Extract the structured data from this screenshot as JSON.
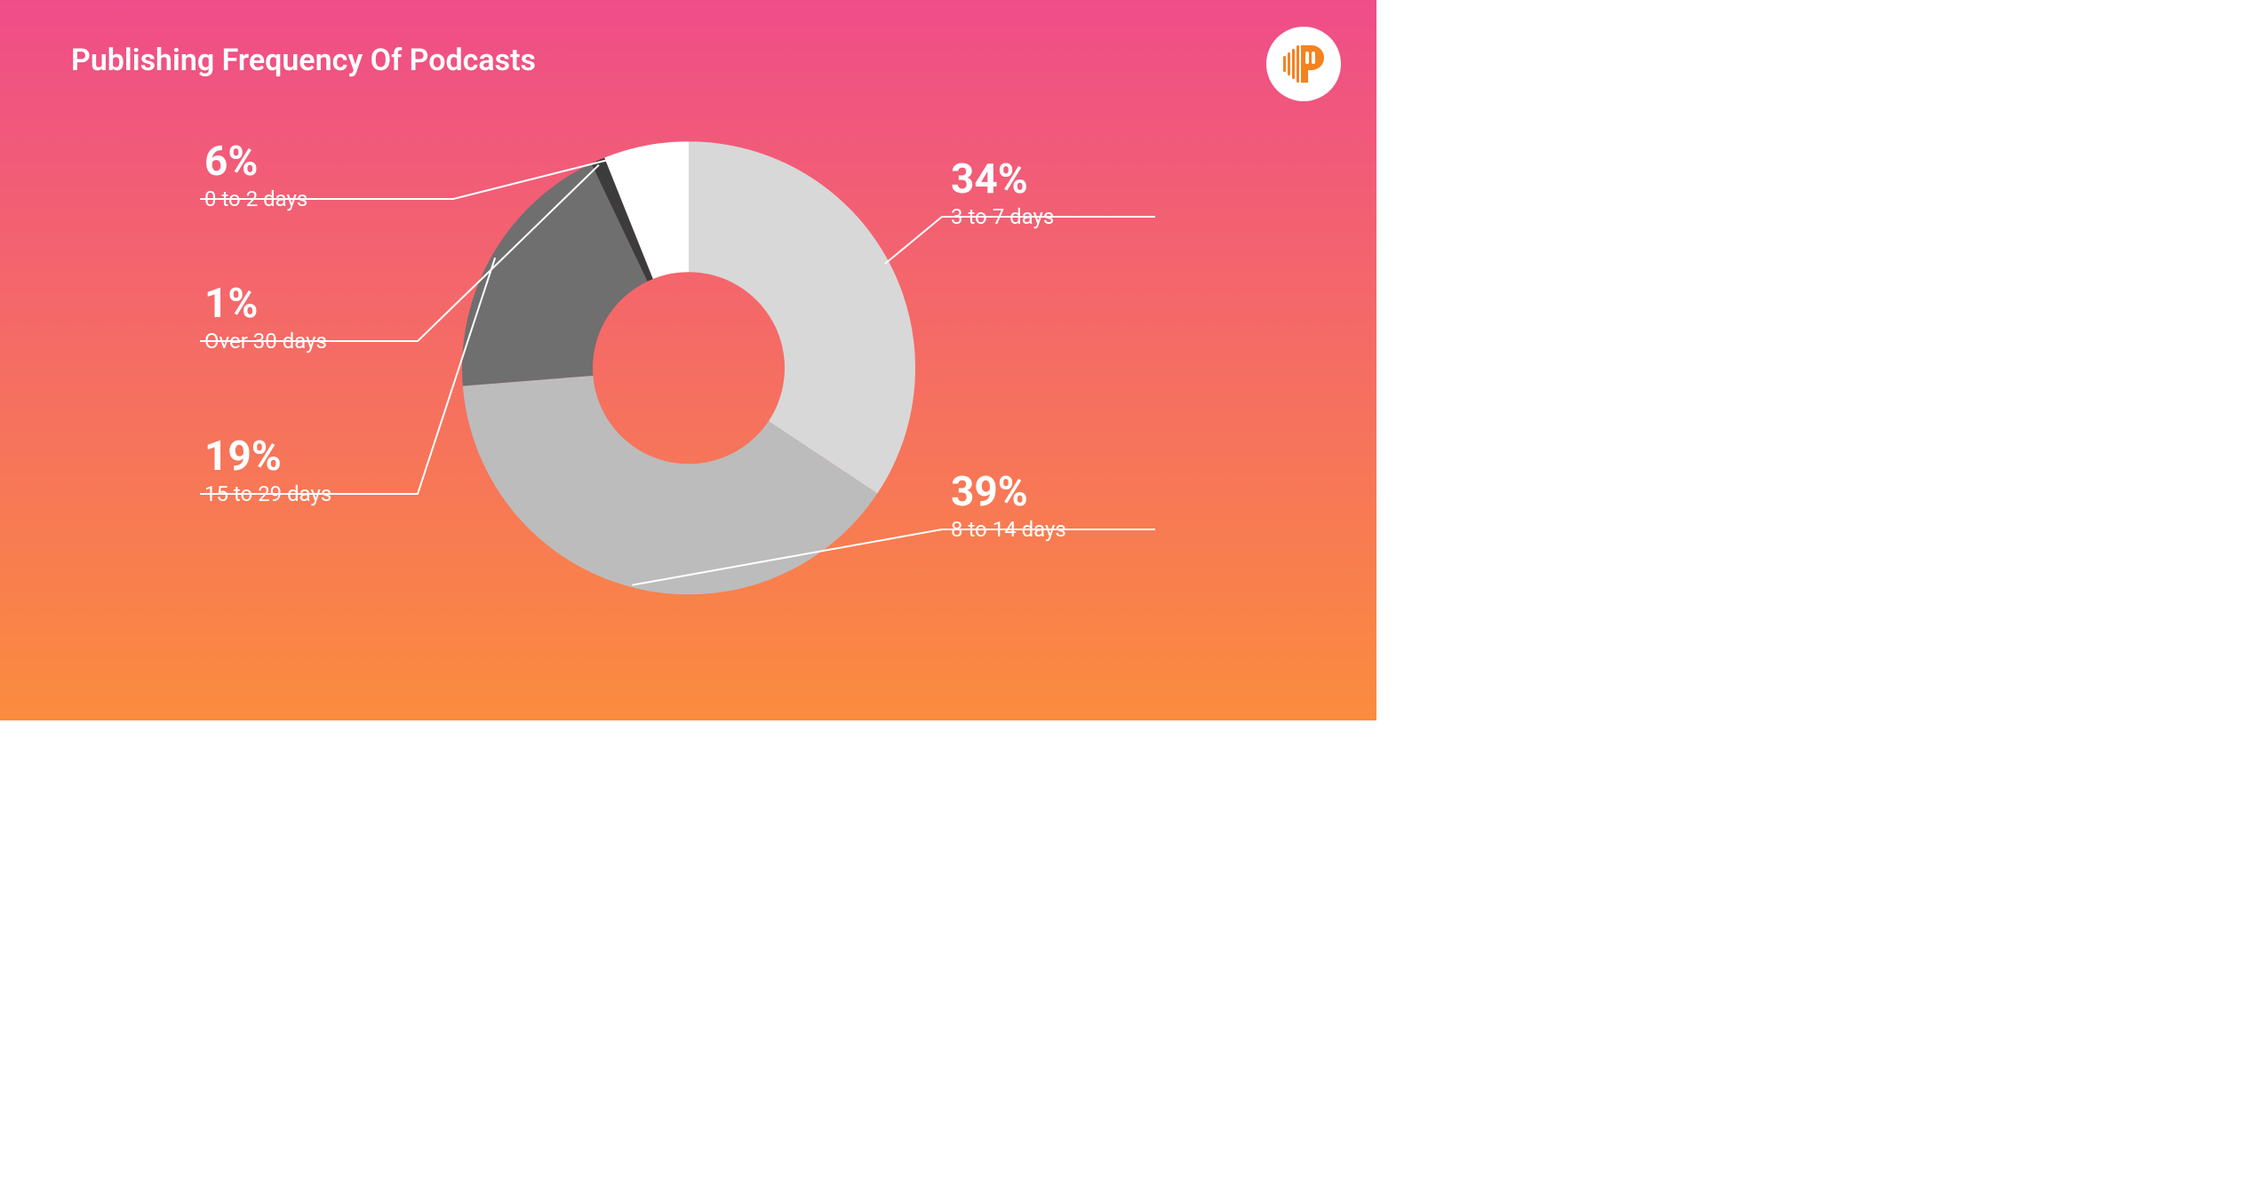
{
  "title": "Publishing Frequency Of Podcasts",
  "title_fontsize": 34,
  "title_color": "#ffffff",
  "background_gradient": {
    "top": "#ef4d89",
    "bottom": "#fb8c3e"
  },
  "logo": {
    "bg": "#ffffff",
    "accent": "#f58220"
  },
  "chart": {
    "type": "donut",
    "outer_radius": 255,
    "inner_radius": 108,
    "start_from_top": true,
    "slices": [
      {
        "key": "s1",
        "value": 34,
        "label": "3 to 7 days",
        "color": "#d8d8d8"
      },
      {
        "key": "s2",
        "value": 39,
        "label": "8 to 14 days",
        "color": "#bcbcbc"
      },
      {
        "key": "s3",
        "value": 19,
        "label": "15 to 29 days",
        "color": "#6f6f6f"
      },
      {
        "key": "s4",
        "value": 1,
        "label": "Over 30 days",
        "color": "#3c3c3c"
      },
      {
        "key": "s5",
        "value": 6,
        "label": "0 to 2 days",
        "color": "#ffffff"
      }
    ],
    "pct_fontsize": 46,
    "label_fontsize": 24,
    "leader_color": "#ffffff",
    "leader_width": 2
  },
  "callouts": {
    "s1": {
      "pct": "34%",
      "label": "3 to 7 days"
    },
    "s2": {
      "pct": "39%",
      "label": "8 to 14 days"
    },
    "s3": {
      "pct": "19%",
      "label": "15 to 29 days"
    },
    "s4": {
      "pct": "1%",
      "label": "Over 30 days"
    },
    "s5": {
      "pct": "6%",
      "label": "0 to 2 days"
    }
  }
}
